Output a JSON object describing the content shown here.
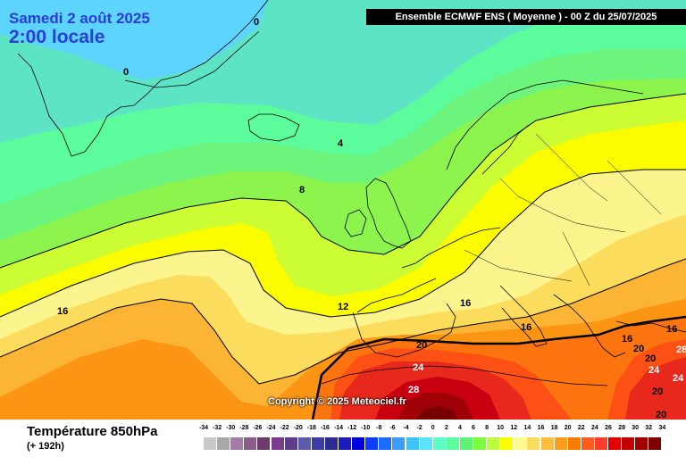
{
  "map": {
    "date_text": "Samedi 2 août 2025",
    "time_text": "2:00 locale",
    "header_text": "Ensemble ECMWF ENS  ( Moyenne )  -  00 Z du 25/07/2025",
    "copyright": "Copyright © 2025 Meteociel.fr",
    "isotherm_labels": [
      "0",
      "0",
      "4",
      "8",
      "12",
      "16",
      "16",
      "16",
      "16",
      "16",
      "20",
      "20",
      "20",
      "20",
      "20",
      "24",
      "24",
      "24",
      "28",
      "28"
    ]
  },
  "footer": {
    "variable_title": "Température 850hPa",
    "lead_time": "(+ 192h)"
  },
  "legend": {
    "ticks": [
      "-34",
      "-32",
      "-30",
      "-28",
      "-26",
      "-24",
      "-22",
      "-20",
      "-18",
      "-16",
      "-14",
      "-12",
      "-10",
      "-8",
      "-6",
      "-4",
      "-2",
      "0",
      "2",
      "4",
      "6",
      "8",
      "10",
      "12",
      "14",
      "16",
      "18",
      "20",
      "22",
      "24",
      "26",
      "28",
      "30",
      "32",
      "34"
    ],
    "colors": [
      "#c8c8c8",
      "#a8a8a8",
      "#a47ca4",
      "#8c5c8c",
      "#6c3c6c",
      "#7c3c8c",
      "#5c3c8c",
      "#5c5cac",
      "#3c3ca4",
      "#2c2c8c",
      "#1c1cbc",
      "#0000dc",
      "#0c3cfc",
      "#1c6cfc",
      "#3c9cfc",
      "#3cc4fc",
      "#5ce4fc",
      "#5cfcc4",
      "#5cfc9c",
      "#5cf474",
      "#7cfc3c",
      "#bcfc3c",
      "#fcfc00",
      "#fcfc8c",
      "#fcdc5c",
      "#fcbc3c",
      "#fc9c1c",
      "#fc7c00",
      "#fc5c1c",
      "#fc3c2c",
      "#e40000",
      "#c40000",
      "#a40000",
      "#7c0000"
    ],
    "map_colors": {
      "t_minus2": "#5cd4fc",
      "t0": "#5ce4c4",
      "t2": "#5cfc9c",
      "t4": "#6cf47c",
      "t6": "#8cf44c",
      "t8": "#ccfc34",
      "t10": "#fcfc00",
      "t12": "#fcf48c",
      "t14": "#fcdc5c",
      "t16": "#fcb434",
      "t18": "#fc9414",
      "t20": "#fc7410",
      "t22": "#fc5014",
      "t24": "#e8281c",
      "t26": "#c80010",
      "t28": "#a00008",
      "t30": "#780000"
    }
  }
}
